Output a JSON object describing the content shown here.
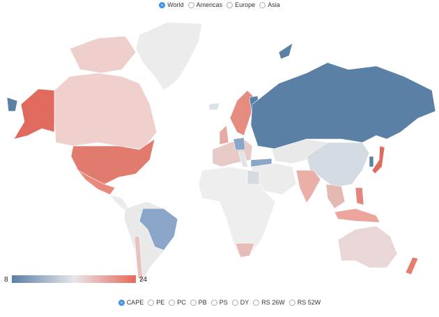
{
  "region_options": [
    "World",
    "Americas",
    "Europe",
    "Asia"
  ],
  "selected_region": "World",
  "metric_options": [
    "CAPE",
    "PE",
    "PC",
    "PB",
    "PS",
    "DY",
    "RS 26W",
    "RS 52W"
  ],
  "selected_metric": "CAPE",
  "color_scale": {
    "min": 8,
    "max": 24,
    "low_color": "#5b7fa6",
    "high_color": "#e8685a"
  }
}
